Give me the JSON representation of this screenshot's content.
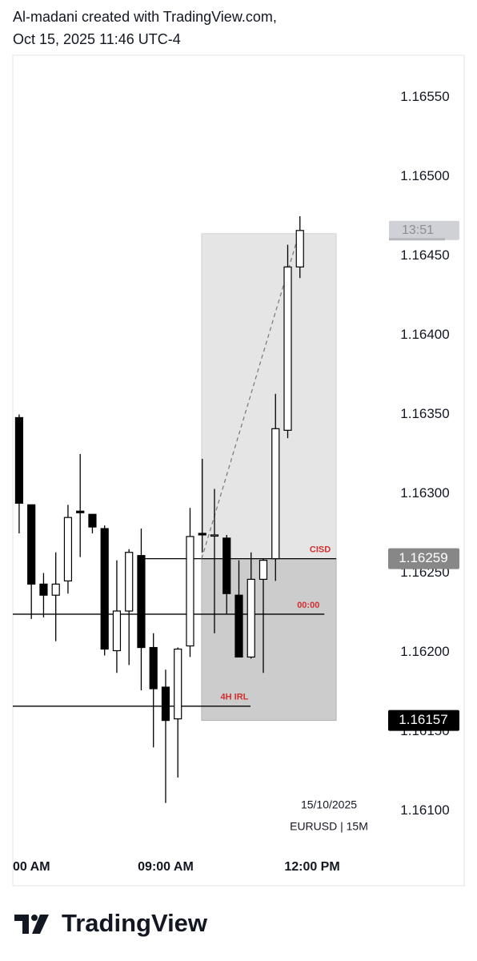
{
  "header": {
    "line1": "Al-madani created with TradingView.com,",
    "line2": "Oct 15, 2025 11:46 UTC-4"
  },
  "footer": {
    "logo": "TradingView"
  },
  "chart_data": {
    "type": "candlestick",
    "x": [
      0,
      1,
      2,
      3,
      4,
      5,
      6,
      7,
      8,
      9,
      10,
      11,
      12,
      13,
      14,
      15,
      16,
      17,
      18,
      19,
      20,
      21,
      22,
      23
    ],
    "open": [
      1.16348,
      1.16293,
      1.16243,
      1.16236,
      1.16245,
      1.16289,
      1.16287,
      1.16278,
      1.16201,
      1.16226,
      1.16261,
      1.16203,
      1.16178,
      1.16158,
      1.16204,
      1.16275,
      1.16274,
      1.16272,
      1.16236,
      1.16197,
      1.16246,
      1.16259,
      1.1634,
      1.16443
    ],
    "high": [
      1.1635,
      1.16293,
      1.1625,
      1.16263,
      1.16293,
      1.16325,
      1.16287,
      1.1628,
      1.16258,
      1.16265,
      1.16278,
      1.16212,
      1.16189,
      1.16203,
      1.16291,
      1.16322,
      1.16303,
      1.16274,
      1.16258,
      1.16263,
      1.16259,
      1.16363,
      1.16457,
      1.16475
    ],
    "low": [
      1.16275,
      1.16221,
      1.16222,
      1.16207,
      1.16237,
      1.1626,
      1.16275,
      1.16198,
      1.16187,
      1.16192,
      1.16176,
      1.1614,
      1.16105,
      1.16121,
      1.16197,
      1.16263,
      1.16212,
      1.16224,
      1.16197,
      1.16196,
      1.16187,
      1.16245,
      1.16335,
      1.16436
    ],
    "close": [
      1.16294,
      1.16243,
      1.16236,
      1.16243,
      1.16285,
      1.16288,
      1.16279,
      1.16202,
      1.16226,
      1.16263,
      1.16203,
      1.16177,
      1.16157,
      1.16202,
      1.16273,
      1.16274,
      1.16274,
      1.16237,
      1.16197,
      1.16246,
      1.16258,
      1.16341,
      1.16443,
      1.16466
    ],
    "up_color": "#ffffff",
    "down_color": "#000000",
    "xlim": [
      -0.52,
      29.9
    ],
    "xticks": [
      {
        "value": 0,
        "label": "00 AM"
      },
      {
        "value": 12,
        "label": "09:00 AM"
      },
      {
        "value": 24,
        "label": "12:00 PM"
      }
    ],
    "ylim": [
      1.16076,
      1.16576
    ],
    "yticks": [
      {
        "value": 1.161,
        "label": "1.16100"
      },
      {
        "value": 1.1615,
        "label": "1.16150"
      },
      {
        "value": 1.162,
        "label": "1.16200"
      },
      {
        "value": 1.1625,
        "label": "1.16250"
      },
      {
        "value": 1.163,
        "label": "1.16300"
      },
      {
        "value": 1.1635,
        "label": "1.16350"
      },
      {
        "value": 1.164,
        "label": "1.16400"
      },
      {
        "value": 1.1645,
        "label": "1.16450"
      },
      {
        "value": 1.165,
        "label": "1.16500"
      },
      {
        "value": 1.1655,
        "label": "1.16550"
      }
    ],
    "zone": {
      "x": [
        14.95,
        25.97
      ],
      "top": 1.16464,
      "mid": 1.16259,
      "bottom": 1.16157
    },
    "trend": {
      "x": [
        14.95,
        23
      ],
      "y": [
        1.16259,
        1.16466
      ]
    },
    "levels": [
      {
        "label": "CISD",
        "value": 1.16259,
        "x": [
          10.2,
          25.97
        ],
        "color": "#d32f2f"
      },
      {
        "label": "00:00",
        "value": 1.16224,
        "x": [
          -0.52,
          25
        ],
        "color": "#d32f2f"
      },
      {
        "label": "4H IRL",
        "value": 1.16166,
        "x": [
          -0.52,
          18.95
        ],
        "color": "#d32f2f"
      }
    ],
    "price_labels": [
      {
        "value": 1.16259,
        "color": "#878787"
      },
      {
        "value": 1.16157,
        "color": "#000000"
      }
    ],
    "countdown": {
      "label": "13:51",
      "value": 1.16466
    },
    "date_note": "15/10/2025",
    "symbol": "EURUSD | 15M"
  }
}
